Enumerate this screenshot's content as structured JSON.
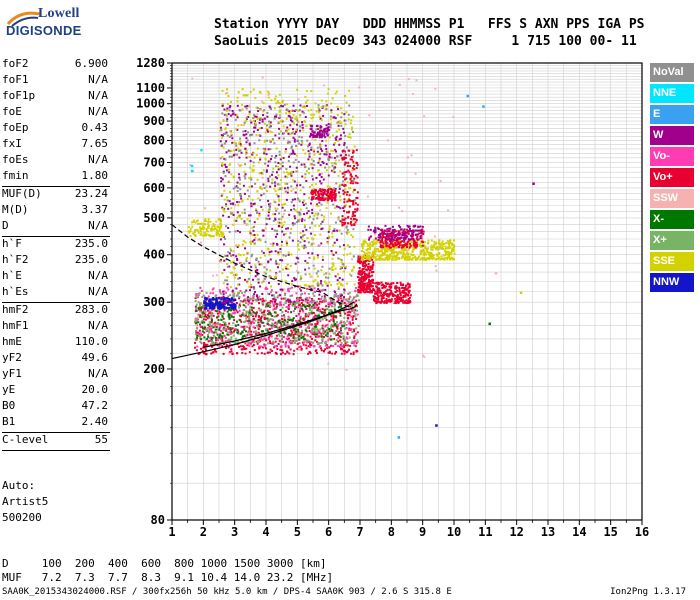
{
  "logo": {
    "top": "Lowell",
    "bottom": "DIGISONDE"
  },
  "header": {
    "line1": "Station YYYY DAY   DDD HHMMSS P1   FFS S AXN PPS IGA PS",
    "line2": "SaoLuis 2015 Dec09 343 024000 RSF     1 715 100 00- 11"
  },
  "params": [
    {
      "name": "foF2",
      "value": "6.900"
    },
    {
      "name": "foF1",
      "value": "N/A"
    },
    {
      "name": "foF1p",
      "value": "N/A"
    },
    {
      "name": "foE",
      "value": "N/A"
    },
    {
      "name": "foEp",
      "value": "0.43"
    },
    {
      "name": "fxI",
      "value": "7.65"
    },
    {
      "name": "foEs",
      "value": "N/A"
    },
    {
      "name": "fmin",
      "value": "1.80"
    },
    {
      "divider": true
    },
    {
      "name": "MUF(D)",
      "value": "23.24"
    },
    {
      "name": "M(D)",
      "value": "3.37"
    },
    {
      "name": "D",
      "value": "N/A"
    },
    {
      "divider": true
    },
    {
      "name": "h`F",
      "value": "235.0"
    },
    {
      "name": "h`F2",
      "value": "235.0"
    },
    {
      "name": "h`E",
      "value": "N/A"
    },
    {
      "name": "h`Es",
      "value": "N/A"
    },
    {
      "divider": true
    },
    {
      "name": "hmF2",
      "value": "283.0"
    },
    {
      "name": "hmF1",
      "value": "N/A"
    },
    {
      "name": "hmE",
      "value": "110.0"
    },
    {
      "name": "yF2",
      "value": "49.6"
    },
    {
      "name": "yF1",
      "value": "N/A"
    },
    {
      "name": "yE",
      "value": "20.0"
    },
    {
      "name": "B0",
      "value": "47.2"
    },
    {
      "name": "B1",
      "value": "2.40"
    },
    {
      "divider": true
    },
    {
      "name": "C-level",
      "value": "55"
    },
    {
      "divider": true
    }
  ],
  "auto": {
    "line1": "Auto:",
    "line2": "Artist5",
    "line3": "500200"
  },
  "muf_table": {
    "row_d": "D     100  200  400  600  800 1000 1500 3000 [km]",
    "row_muf": "MUF   7.2  7.3  7.7  8.3  9.1 10.4 14.0 23.2 [MHz]"
  },
  "footer": {
    "left": "SAA0K_2015343024000.RSF / 300fx256h 50 kHz 5.0 km / DPS-4 SAA0K 903 / 2.6 S 315.8 E",
    "right": "Ion2Png 1.3.17"
  },
  "legend": [
    {
      "label": "NoVal",
      "color": "#909090",
      "text_color": "#ffffff"
    },
    {
      "label": "NNE",
      "color": "#00e6ff",
      "text_color": "#ffffff"
    },
    {
      "label": "E",
      "color": "#3aa0f0",
      "text_color": "#ffffff"
    },
    {
      "label": "W",
      "color": "#a0008c",
      "text_color": "#ffffff"
    },
    {
      "label": "Vo-",
      "color": "#ff3cb4",
      "text_color": "#ffffff"
    },
    {
      "label": "Vo+",
      "color": "#e80030",
      "text_color": "#ffffff"
    },
    {
      "label": "SSW",
      "color": "#f5b2b0",
      "text_color": "#ffffff"
    },
    {
      "label": "X-",
      "color": "#007800",
      "text_color": "#ffffff"
    },
    {
      "label": "X+",
      "color": "#78b464",
      "text_color": "#ffffff"
    },
    {
      "label": "SSE",
      "color": "#d2d200",
      "text_color": "#ffffff"
    },
    {
      "label": "NNW",
      "color": "#1414c8",
      "text_color": "#ffffff"
    }
  ],
  "chart_data": {
    "type": "scatter",
    "title": "",
    "xlabel": "",
    "ylabel": "",
    "xlim": [
      1,
      16
    ],
    "ylim": [
      80,
      1280
    ],
    "y_scale": "log",
    "x_ticks": [
      1,
      2,
      3,
      4,
      5,
      6,
      7,
      8,
      9,
      10,
      11,
      12,
      13,
      14,
      15,
      16
    ],
    "y_ticks": [
      80,
      200,
      300,
      400,
      500,
      600,
      700,
      800,
      900,
      1000,
      1100,
      1280
    ],
    "grid": true,
    "legend_position": "right",
    "clusters": [
      {
        "name": "Vo+",
        "color": "#e80030",
        "x": [
          1.7,
          6.9
        ],
        "y": [
          220,
          310
        ],
        "n": 700
      },
      {
        "name": "Vo-",
        "color": "#ff3cb4",
        "x": [
          1.7,
          6.9
        ],
        "y": [
          230,
          330
        ],
        "n": 400
      },
      {
        "name": "X+",
        "color": "#78b464",
        "x": [
          1.7,
          7.0
        ],
        "y": [
          235,
          320
        ],
        "n": 350
      },
      {
        "name": "X-",
        "color": "#007800",
        "x": [
          1.7,
          6.5
        ],
        "y": [
          240,
          300
        ],
        "n": 200
      },
      {
        "name": "NNW",
        "color": "#1414c8",
        "x": [
          2.0,
          3.0
        ],
        "y": [
          290,
          310
        ],
        "n": 180
      },
      {
        "name": "W",
        "color": "#a0008c",
        "x": [
          2.5,
          6.5
        ],
        "y": [
          300,
          1000
        ],
        "n": 600
      },
      {
        "name": "SSE",
        "color": "#d2d200",
        "x": [
          2.5,
          6.8
        ],
        "y": [
          330,
          1100
        ],
        "n": 600
      },
      {
        "name": "NoVal",
        "color": "#909090",
        "x": [
          2.5,
          6.8
        ],
        "y": [
          300,
          1000
        ],
        "n": 350
      },
      {
        "name": "Vo+",
        "color": "#e80030",
        "x": [
          6.9,
          7.4
        ],
        "y": [
          320,
          400
        ],
        "n": 250
      },
      {
        "name": "Vo+",
        "color": "#e80030",
        "x": [
          7.4,
          8.6
        ],
        "y": [
          300,
          340
        ],
        "n": 250
      },
      {
        "name": "SSE",
        "color": "#d2d200",
        "x": [
          7.0,
          10.0
        ],
        "y": [
          390,
          440
        ],
        "n": 500
      },
      {
        "name": "Vo+",
        "color": "#e80030",
        "x": [
          7.6,
          9.0
        ],
        "y": [
          420,
          470
        ],
        "n": 200
      },
      {
        "name": "W",
        "color": "#a0008c",
        "x": [
          7.2,
          9.0
        ],
        "y": [
          440,
          480
        ],
        "n": 120
      },
      {
        "name": "Vo+",
        "color": "#e80030",
        "x": [
          5.4,
          6.2
        ],
        "y": [
          560,
          600
        ],
        "n": 120
      },
      {
        "name": "W",
        "color": "#a0008c",
        "x": [
          5.4,
          6.0
        ],
        "y": [
          820,
          880
        ],
        "n": 50
      },
      {
        "name": "SSE",
        "color": "#d2d200",
        "x": [
          1.5,
          2.6
        ],
        "y": [
          450,
          500
        ],
        "n": 120
      },
      {
        "name": "Vo+",
        "color": "#e80030",
        "x": [
          6.4,
          6.9
        ],
        "y": [
          480,
          760
        ],
        "n": 120
      },
      {
        "name": "SSW",
        "color": "#f5b2b0",
        "x": [
          1.5,
          10.0
        ],
        "y": [
          200,
          1200
        ],
        "n": 80
      }
    ],
    "isolated_points": [
      {
        "x": 10.4,
        "y": 1055,
        "color": "#3aa0f0"
      },
      {
        "x": 10.9,
        "y": 990,
        "color": "#3aa0f0"
      },
      {
        "x": 12.5,
        "y": 620,
        "color": "#a0008c"
      },
      {
        "x": 8.2,
        "y": 133,
        "color": "#3aa0f0"
      },
      {
        "x": 9.4,
        "y": 143,
        "color": "#1414c8"
      },
      {
        "x": 11.3,
        "y": 360,
        "color": "#f5b2b0"
      },
      {
        "x": 11.1,
        "y": 265,
        "color": "#007800"
      },
      {
        "x": 12.1,
        "y": 320,
        "color": "#d2d200"
      },
      {
        "x": 1.9,
        "y": 760,
        "color": "#00e6ff"
      },
      {
        "x": 1.6,
        "y": 690,
        "color": "#00e6ff"
      },
      {
        "x": 1.6,
        "y": 670,
        "color": "#00e6ff"
      }
    ],
    "curves": [
      {
        "name": "trace",
        "style": "solid",
        "x": [
          1.0,
          2.0,
          3.0,
          4.0,
          5.0,
          5.5,
          6.0,
          6.4,
          6.7,
          6.85,
          6.9
        ],
        "y": [
          213,
          222,
          232,
          245,
          260,
          268,
          278,
          285,
          288,
          292,
          297
        ]
      },
      {
        "name": "profile-lower",
        "style": "solid",
        "x": [
          2.0,
          3.0,
          4.0,
          5.0,
          5.8,
          6.3,
          6.6,
          6.8
        ],
        "y": [
          228,
          237,
          248,
          262,
          275,
          285,
          293,
          300
        ]
      },
      {
        "name": "profile-upper",
        "style": "dashed",
        "x": [
          1.0,
          1.5,
          2.0,
          3.0,
          4.0,
          5.0,
          5.8,
          6.3,
          6.6,
          6.8
        ],
        "y": [
          480,
          445,
          420,
          380,
          350,
          330,
          318,
          300,
          292,
          290
        ]
      }
    ]
  }
}
